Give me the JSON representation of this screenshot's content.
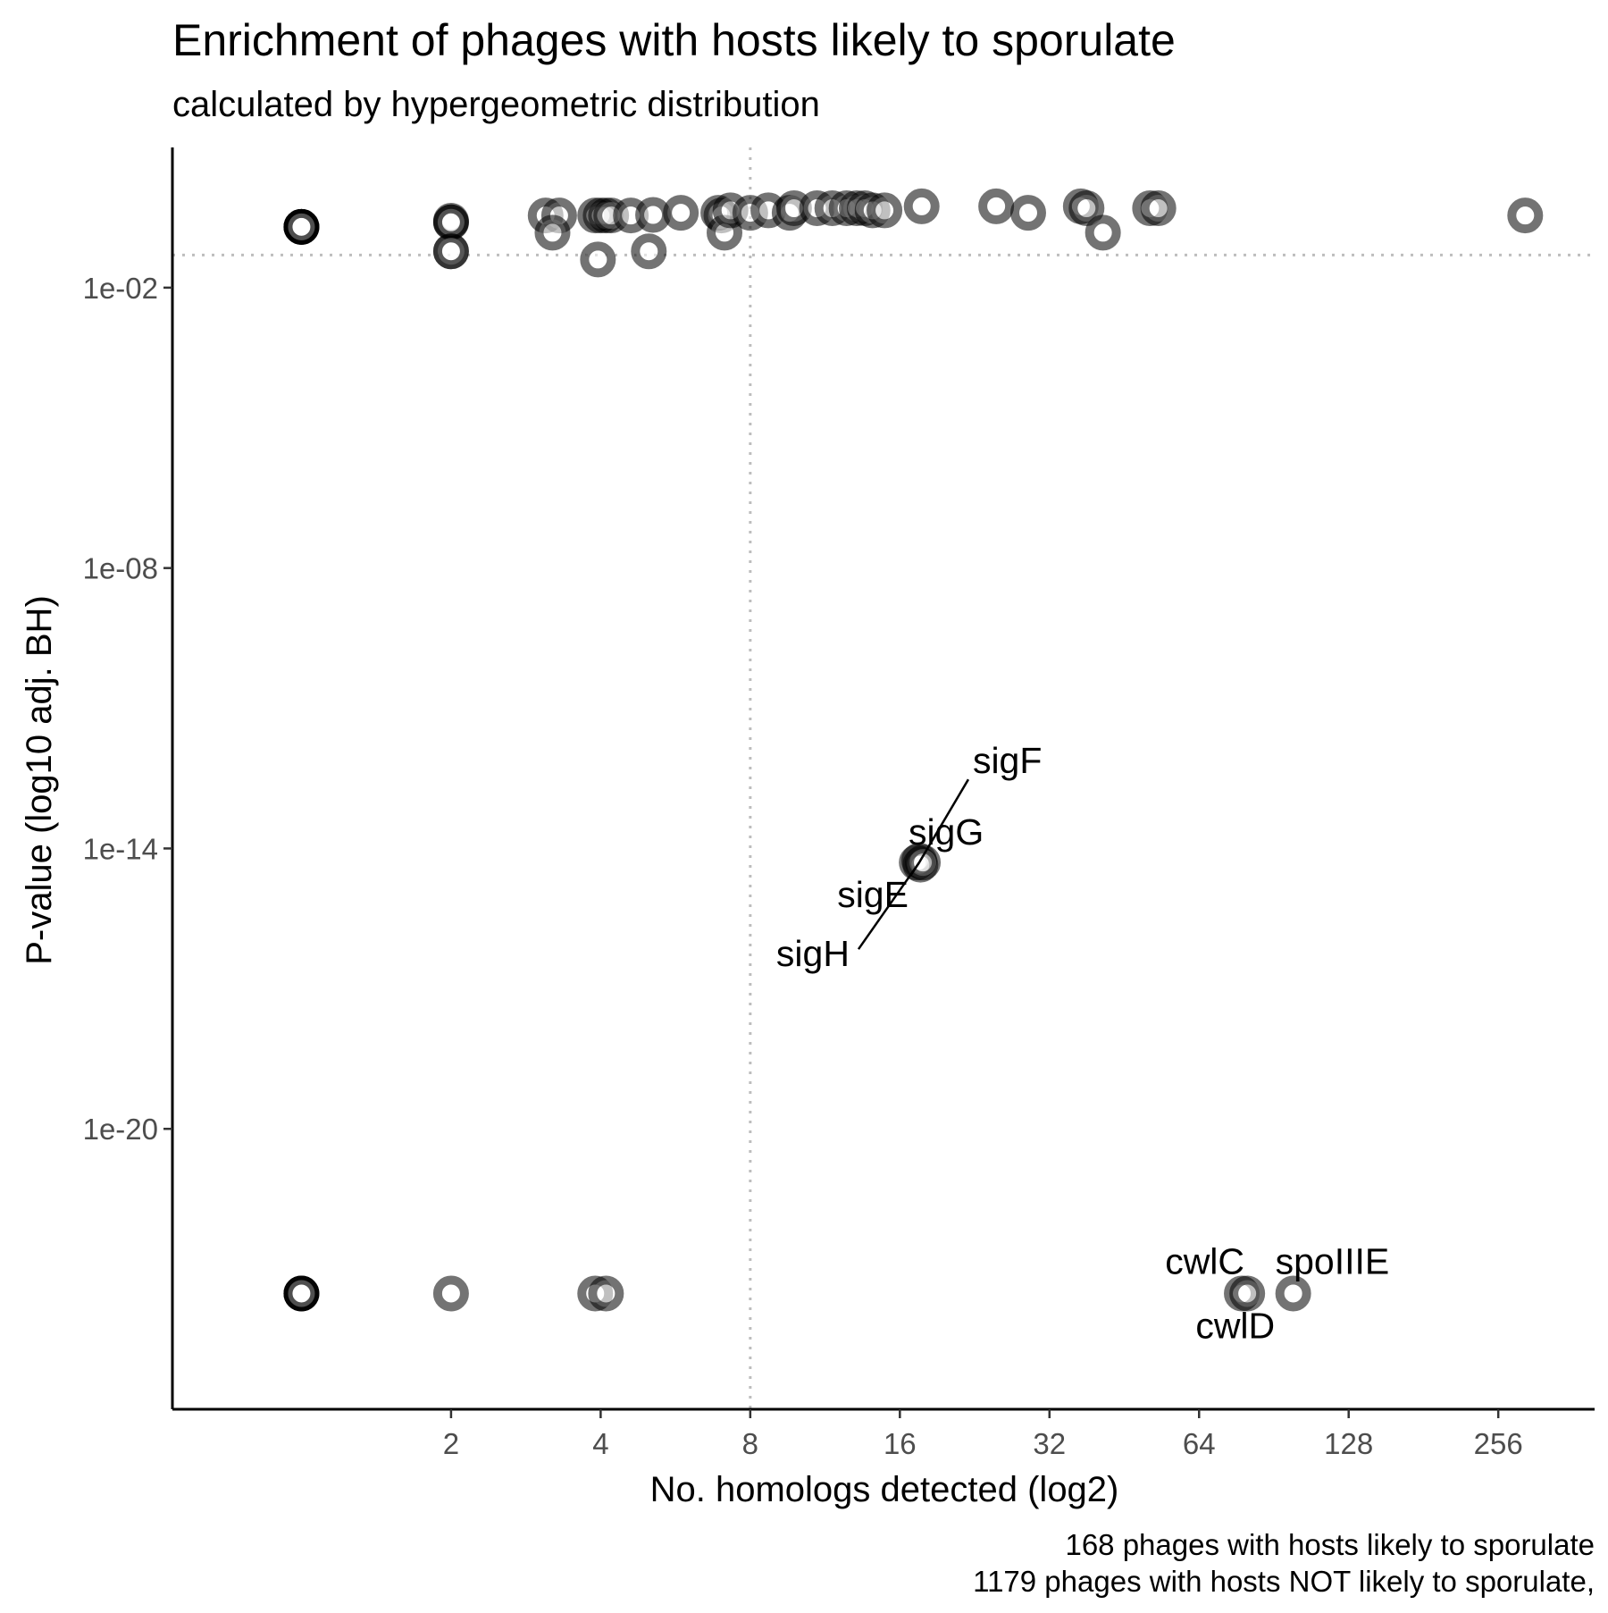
{
  "chart_data": {
    "type": "scatter",
    "title": "Enrichment of phages with hosts likely to sporulate",
    "subtitle": "calculated by hypergeometric distribution",
    "xlabel": "No. homologs detected (log2)",
    "ylabel": "P-value (log10 adj. BH)",
    "caption": [
      "168 phages with hosts likely to sporulate",
      "1179 phages with hosts NOT likely to sporulate,"
    ],
    "x_scale": "log2",
    "y_scale": "log10",
    "xlim": [
      0.55,
      400
    ],
    "ylim": [
      1e-26,
      10.0
    ],
    "x_ticks": [
      2,
      4,
      8,
      16,
      32,
      64,
      128,
      256
    ],
    "x_tick_labels": [
      "2",
      "4",
      "8",
      "16",
      "32",
      "64",
      "128",
      "256"
    ],
    "y_ticks": [
      1e-20,
      1e-14,
      1e-08,
      0.01
    ],
    "y_tick_labels": [
      "1e-20",
      "1e-14",
      "1e-08",
      "1e-02"
    ],
    "reference_lines": {
      "x": 8,
      "y": 0.05
    },
    "grid": false,
    "legend": "none",
    "point_color": "#000000",
    "points": [
      {
        "x": 1,
        "y": 0.2
      },
      {
        "x": 1,
        "y": 0.2
      },
      {
        "x": 1,
        "y": 0.2
      },
      {
        "x": 1,
        "y": 0.2
      },
      {
        "x": 1,
        "y": 0.2
      },
      {
        "x": 1,
        "y": 0.2
      },
      {
        "x": 2,
        "y": 0.27
      },
      {
        "x": 2,
        "y": 0.25
      },
      {
        "x": 2,
        "y": 0.25
      },
      {
        "x": 2,
        "y": 0.06
      },
      {
        "x": 2,
        "y": 0.06
      },
      {
        "x": 3.1,
        "y": 0.35
      },
      {
        "x": 3.3,
        "y": 0.35
      },
      {
        "x": 3.2,
        "y": 0.15
      },
      {
        "x": 3.9,
        "y": 0.35
      },
      {
        "x": 4,
        "y": 0.35
      },
      {
        "x": 4.1,
        "y": 0.35
      },
      {
        "x": 4.2,
        "y": 0.35
      },
      {
        "x": 3.95,
        "y": 0.04
      },
      {
        "x": 4.6,
        "y": 0.35
      },
      {
        "x": 5.1,
        "y": 0.36
      },
      {
        "x": 5.0,
        "y": 0.06
      },
      {
        "x": 5.8,
        "y": 0.4
      },
      {
        "x": 6.9,
        "y": 0.4
      },
      {
        "x": 7,
        "y": 0.35
      },
      {
        "x": 7.1,
        "y": 0.15
      },
      {
        "x": 7.3,
        "y": 0.45
      },
      {
        "x": 8,
        "y": 0.4
      },
      {
        "x": 8.7,
        "y": 0.45
      },
      {
        "x": 9.6,
        "y": 0.4
      },
      {
        "x": 9.8,
        "y": 0.5
      },
      {
        "x": 10.9,
        "y": 0.5
      },
      {
        "x": 11.7,
        "y": 0.5
      },
      {
        "x": 12.5,
        "y": 0.5
      },
      {
        "x": 13.1,
        "y": 0.5
      },
      {
        "x": 13.6,
        "y": 0.5
      },
      {
        "x": 14.1,
        "y": 0.45
      },
      {
        "x": 14.9,
        "y": 0.45
      },
      {
        "x": 17.7,
        "y": 0.55
      },
      {
        "x": 25,
        "y": 0.55
      },
      {
        "x": 29,
        "y": 0.4
      },
      {
        "x": 37,
        "y": 0.55
      },
      {
        "x": 38,
        "y": 0.5
      },
      {
        "x": 41,
        "y": 0.15
      },
      {
        "x": 51,
        "y": 0.5
      },
      {
        "x": 53,
        "y": 0.5
      },
      {
        "x": 290,
        "y": 0.35
      },
      {
        "x": 17.3,
        "y": 5e-15
      },
      {
        "x": 17.5,
        "y": 5.5e-15
      },
      {
        "x": 17.6,
        "y": 4.5e-15
      },
      {
        "x": 17.8,
        "y": 5e-15
      },
      {
        "x": 1,
        "y": 3e-24
      },
      {
        "x": 1,
        "y": 3e-24
      },
      {
        "x": 1,
        "y": 3e-24
      },
      {
        "x": 1,
        "y": 3e-24
      },
      {
        "x": 1,
        "y": 3e-24
      },
      {
        "x": 2,
        "y": 3e-24
      },
      {
        "x": 3.9,
        "y": 3e-24
      },
      {
        "x": 4.1,
        "y": 3e-24
      },
      {
        "x": 78,
        "y": 3e-24
      },
      {
        "x": 80,
        "y": 3e-24
      },
      {
        "x": 99,
        "y": 3e-24
      }
    ],
    "annotations": [
      {
        "label": "sigF",
        "x": 17.5,
        "y": 5e-15
      },
      {
        "label": "sigG",
        "x": 17.5,
        "y": 5e-15
      },
      {
        "label": "sigE",
        "x": 17.5,
        "y": 5e-15
      },
      {
        "label": "sigH",
        "x": 17.5,
        "y": 5e-15
      },
      {
        "label": "cwlC",
        "x": 78,
        "y": 3e-24
      },
      {
        "label": "spoIIIE",
        "x": 99,
        "y": 3e-24
      },
      {
        "label": "cwlD",
        "x": 80,
        "y": 3e-24
      }
    ]
  }
}
